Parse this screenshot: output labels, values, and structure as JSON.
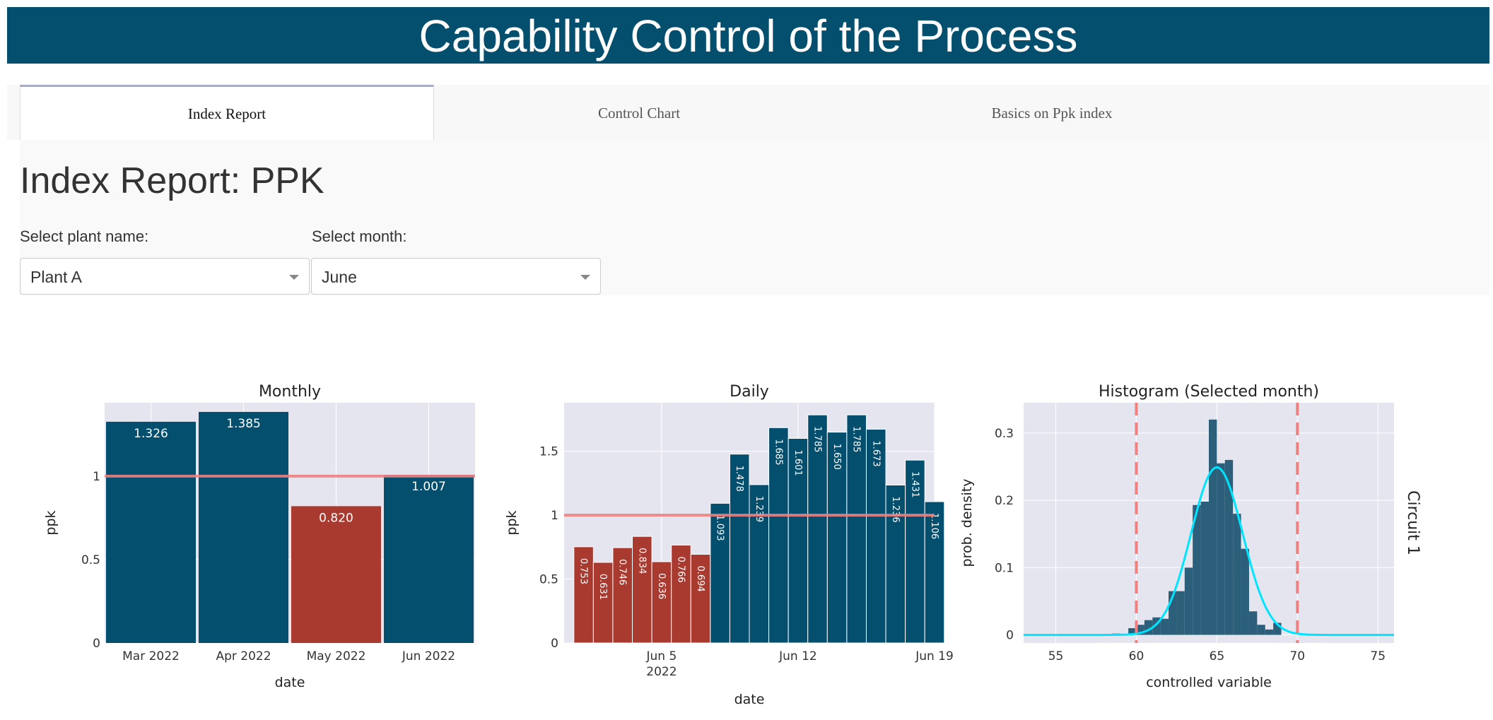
{
  "header": {
    "title": "Capability Control of the Process"
  },
  "tabs": [
    {
      "label": "Index Report",
      "active": true
    },
    {
      "label": "Control Chart",
      "active": false
    },
    {
      "label": "Basics on Ppk index",
      "active": false
    }
  ],
  "report": {
    "title": "Index Report: PPK"
  },
  "filters": {
    "plant_label": "Select plant name:",
    "plant_value": "Plant A",
    "month_label": "Select month:",
    "month_value": "June"
  },
  "colors": {
    "ok": "#044e6e",
    "bad": "#a93a30",
    "threshold": "#f08080",
    "density": "#00e5ff",
    "plot_bg": "#e5e5f0"
  },
  "chart_data": [
    {
      "type": "bar",
      "title": "Monthly",
      "xlabel": "date",
      "ylabel": "ppk",
      "categories": [
        "Mar 2022",
        "Apr 2022",
        "May 2022",
        "Jun 2022"
      ],
      "values": [
        1.326,
        1.385,
        0.82,
        1.007
      ],
      "labels": [
        "1.326",
        "1.385",
        "0.820",
        "1.007"
      ],
      "threshold": 1,
      "ylim": [
        0,
        1.44
      ],
      "yticks": [
        0,
        0.5,
        1
      ],
      "ytick_labels": [
        "0",
        "0.5",
        "1"
      ]
    },
    {
      "type": "bar",
      "title": "Daily",
      "xlabel": "date",
      "ylabel": "ppk",
      "x_start": "2022-05-31",
      "x_end": "2022-06-19",
      "x": [
        "2022-06-01",
        "2022-06-02",
        "2022-06-03",
        "2022-06-04",
        "2022-06-05",
        "2022-06-06",
        "2022-06-07",
        "2022-06-08",
        "2022-06-09",
        "2022-06-10",
        "2022-06-11",
        "2022-06-12",
        "2022-06-13",
        "2022-06-14",
        "2022-06-15",
        "2022-06-16",
        "2022-06-17",
        "2022-06-18",
        "2022-06-19"
      ],
      "values": [
        0.753,
        0.631,
        0.746,
        0.834,
        0.636,
        0.766,
        0.694,
        1.093,
        1.478,
        1.239,
        1.685,
        1.601,
        1.785,
        1.65,
        1.785,
        1.673,
        1.236,
        1.431,
        1.106
      ],
      "labels": [
        "0.753",
        "0.631",
        "0.746",
        "0.834",
        "0.636",
        "0.766",
        "0.694",
        "1.093",
        "1.478",
        "1.239",
        "1.685",
        "1.601",
        "1.785",
        "1.650",
        "1.785",
        "1.673",
        "1.236",
        "1.431",
        "1.106"
      ],
      "threshold": 1,
      "ylim": [
        0,
        1.88
      ],
      "yticks": [
        0,
        0.5,
        1,
        1.5
      ],
      "ytick_labels": [
        "0",
        "0.5",
        "1",
        "1.5"
      ],
      "xticks": [
        {
          "date": "2022-06-05",
          "label": "Jun 5",
          "sublabel": "2022"
        },
        {
          "date": "2022-06-12",
          "label": "Jun 12",
          "sublabel": ""
        },
        {
          "date": "2022-06-19",
          "label": "Jun 19",
          "sublabel": ""
        }
      ]
    },
    {
      "type": "histogram",
      "title": "Histogram (Selected month)",
      "xlabel": "controlled variable",
      "ylabel": "prob. density",
      "side_label": "Circuit 1",
      "xlim": [
        53,
        76
      ],
      "ylim": [
        -0.012,
        0.345
      ],
      "xticks": [
        55,
        60,
        65,
        70,
        75
      ],
      "xtick_labels": [
        "55",
        "60",
        "65",
        "70",
        "75"
      ],
      "yticks": [
        0,
        0.1,
        0.2,
        0.3
      ],
      "ytick_labels": [
        "0",
        "0.1",
        "0.2",
        "0.3"
      ],
      "spec_limits": [
        60,
        70
      ],
      "bin_width": 0.5,
      "bins": [
        {
          "x0": 58.5,
          "density": 0.002
        },
        {
          "x0": 59.5,
          "density": 0.01
        },
        {
          "x0": 60.0,
          "density": 0.015
        },
        {
          "x0": 60.5,
          "density": 0.022
        },
        {
          "x0": 61.0,
          "density": 0.026
        },
        {
          "x0": 61.5,
          "density": 0.024
        },
        {
          "x0": 62.0,
          "density": 0.065
        },
        {
          "x0": 62.5,
          "density": 0.065
        },
        {
          "x0": 63.0,
          "density": 0.1
        },
        {
          "x0": 63.5,
          "density": 0.193
        },
        {
          "x0": 64.0,
          "density": 0.198
        },
        {
          "x0": 64.5,
          "density": 0.32
        },
        {
          "x0": 65.0,
          "density": 0.255
        },
        {
          "x0": 65.5,
          "density": 0.26
        },
        {
          "x0": 66.0,
          "density": 0.18
        },
        {
          "x0": 66.5,
          "density": 0.128
        },
        {
          "x0": 67.0,
          "density": 0.035
        },
        {
          "x0": 67.5,
          "density": 0.015
        },
        {
          "x0": 68.0,
          "density": 0.008
        },
        {
          "x0": 68.5,
          "density": 0.018
        }
      ],
      "density_curve": {
        "mean": 65,
        "sd": 1.6,
        "peak": 0.249
      }
    }
  ]
}
